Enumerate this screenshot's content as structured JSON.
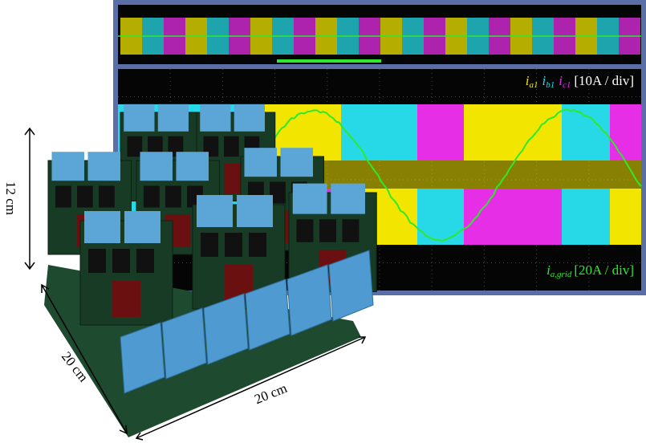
{
  "scope": {
    "phase_legend": {
      "a": {
        "symbol": "i",
        "sub": "a1"
      },
      "b": {
        "symbol": "i",
        "sub": "b1"
      },
      "c": {
        "symbol": "i",
        "sub": "c1"
      },
      "scale": "[10A / div]"
    },
    "grid_legend": {
      "symbol": "i",
      "sub": "a,grid",
      "scale": "[20A / div]"
    }
  },
  "dimensions": {
    "height": "12 cm",
    "depth": "20 cm",
    "width": "20 cm"
  }
}
